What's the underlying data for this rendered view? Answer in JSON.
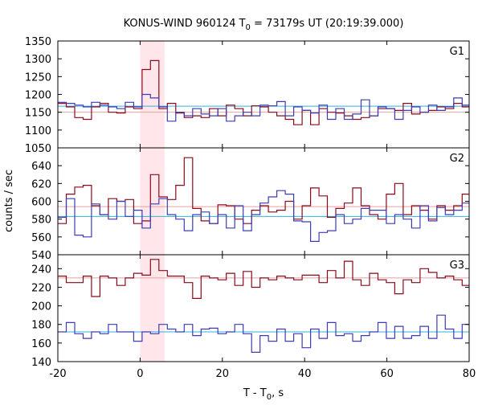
{
  "chart_data": {
    "type": "line",
    "title": "KONUS-WIND 960124 T",
    "title_sub": "0",
    "title_rest": " = 73179s UT (20:19:39.000)",
    "xlabel_main": "T - T",
    "xlabel_sub": "0",
    "xlabel_rest": ", s",
    "ylabel": "counts / sec",
    "xlim": [
      -20,
      80
    ],
    "x_ticks": [
      -20,
      0,
      20,
      40,
      60,
      80
    ],
    "bin_width": 2.048,
    "shaded_interval": [
      0,
      6
    ],
    "colors": {
      "dark_red": "#8b0a1a",
      "blue": "#3c3cb4",
      "background_red": "#e8a0a0",
      "background_blue": "#30b0e0",
      "shade": "#ffe6ea"
    },
    "panels": [
      {
        "label": "G1",
        "ylim": [
          1050,
          1350
        ],
        "y_ticks": [
          1050,
          1100,
          1150,
          1200,
          1250,
          1300,
          1350
        ],
        "background_red": 1150,
        "background_blue": 1167,
        "series": [
          {
            "color": "dark_red",
            "values": [
              1175,
              1165,
              1135,
              1130,
              1165,
              1175,
              1150,
              1148,
              1165,
              1160,
              1270,
              1295,
              1160,
              1175,
              1148,
              1135,
              1140,
              1135,
              1160,
              1140,
              1170,
              1160,
              1140,
              1168,
              1165,
              1150,
              1140,
              1130,
              1115,
              1155,
              1115,
              1160,
              1150,
              1148,
              1140,
              1130,
              1135,
              1140,
              1160,
              1160,
              1155,
              1175,
              1145,
              1150,
              1155,
              1165,
              1160,
              1175,
              1165
            ]
          },
          {
            "color": "blue",
            "values": [
              1178,
              1175,
              1170,
              1165,
              1178,
              1170,
              1165,
              1160,
              1178,
              1165,
              1200,
              1190,
              1165,
              1125,
              1150,
              1140,
              1160,
              1145,
              1140,
              1160,
              1125,
              1140,
              1150,
              1140,
              1170,
              1168,
              1180,
              1140,
              1165,
              1155,
              1148,
              1170,
              1130,
              1160,
              1130,
              1145,
              1185,
              1140,
              1165,
              1160,
              1130,
              1155,
              1165,
              1150,
              1170,
              1155,
              1165,
              1190,
              1170
            ]
          }
        ]
      },
      {
        "label": "G2",
        "ylim": [
          540,
          660
        ],
        "y_ticks": [
          540,
          560,
          580,
          600,
          620,
          640
        ],
        "background_red": 594,
        "background_blue": 583,
        "series": [
          {
            "color": "dark_red",
            "values": [
              575,
              608,
              616,
              618,
              595,
              585,
              603,
              600,
              602,
              575,
              578,
              630,
              605,
              602,
              618,
              649,
              592,
              578,
              575,
              596,
              595,
              580,
              575,
              590,
              595,
              588,
              590,
              600,
              580,
              595,
              615,
              606,
              582,
              592,
              598,
              615,
              595,
              585,
              580,
              608,
              620,
              585,
              595,
              590,
              580,
              595,
              590,
              595,
              608
            ]
          },
          {
            "color": "blue",
            "values": [
              582,
              603,
              562,
              560,
              597,
              585,
              580,
              600,
              583,
              590,
              570,
              597,
              603,
              585,
              580,
              567,
              585,
              588,
              575,
              585,
              570,
              595,
              567,
              585,
              598,
              605,
              612,
              608,
              578,
              577,
              555,
              565,
              567,
              585,
              575,
              580,
              592,
              590,
              590,
              575,
              585,
              580,
              570,
              595,
              578,
              593,
              585,
              590,
              598
            ]
          }
        ]
      },
      {
        "label": "G3",
        "ylim": [
          140,
          255
        ],
        "y_ticks": [
          140,
          160,
          180,
          200,
          220,
          240
        ],
        "background_red": 230,
        "background_blue": 172,
        "series": [
          {
            "color": "dark_red",
            "values": [
              232,
              225,
              225,
              232,
              210,
              232,
              230,
              222,
              230,
              235,
              233,
              250,
              238,
              232,
              232,
              225,
              208,
              232,
              230,
              228,
              235,
              222,
              237,
              220,
              230,
              228,
              232,
              230,
              228,
              233,
              233,
              225,
              238,
              230,
              248,
              228,
              222,
              235,
              228,
              225,
              213,
              228,
              225,
              240,
              236,
              230,
              232,
              228,
              222
            ]
          },
          {
            "color": "blue",
            "values": [
              172,
              182,
              170,
              165,
              172,
              170,
              180,
              172,
              172,
              162,
              172,
              170,
              180,
              175,
              172,
              180,
              168,
              175,
              176,
              170,
              172,
              180,
              170,
              150,
              168,
              162,
              175,
              162,
              170,
              155,
              175,
              165,
              182,
              168,
              170,
              162,
              168,
              172,
              182,
              165,
              178,
              165,
              168,
              178,
              165,
              190,
              175,
              165,
              180
            ]
          }
        ]
      }
    ]
  }
}
